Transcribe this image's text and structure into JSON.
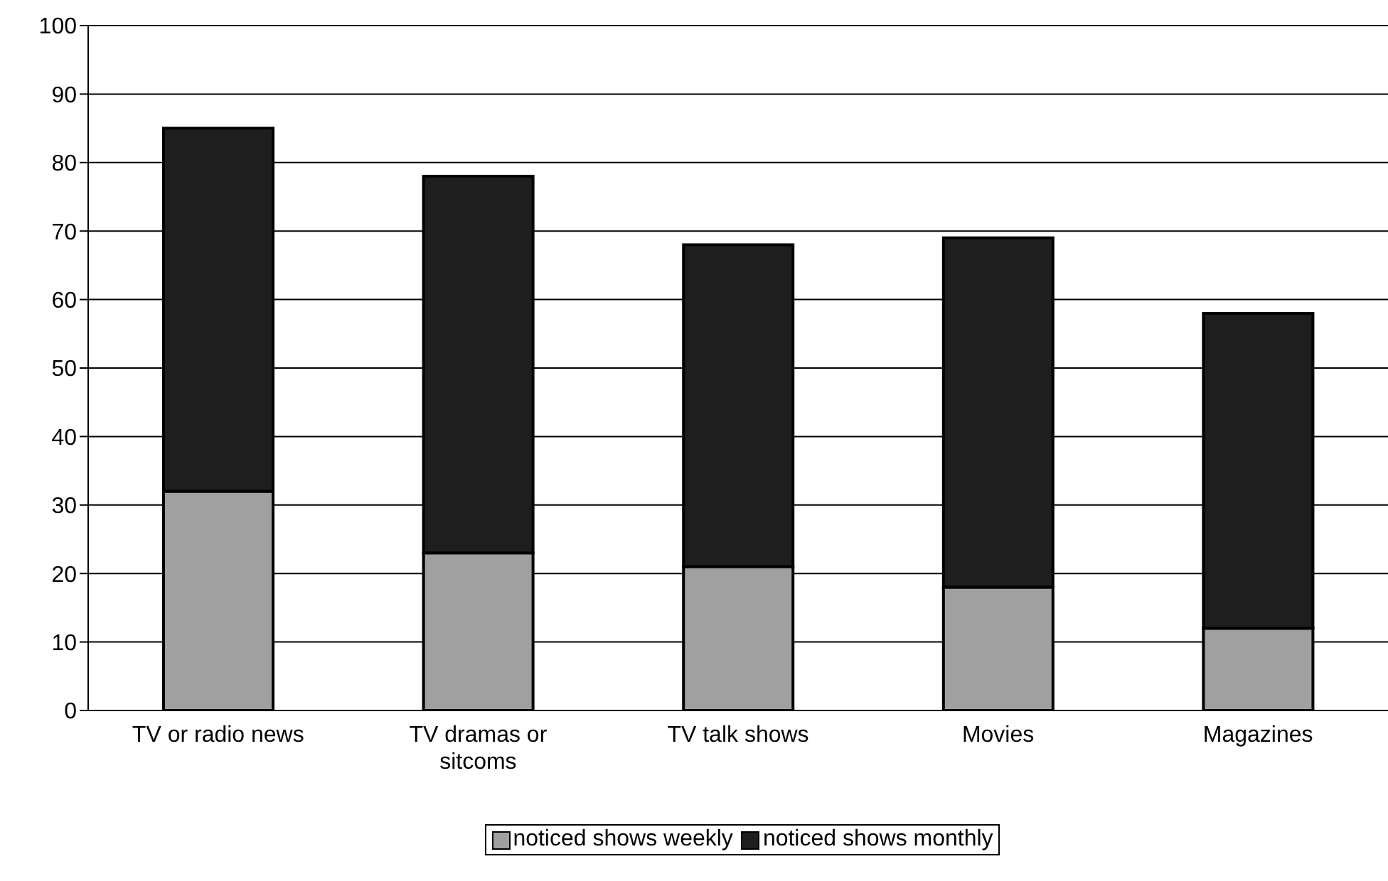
{
  "chart_data": {
    "type": "bar",
    "stacked": true,
    "categories": [
      "TV or radio news",
      "TV dramas or sitcoms",
      "TV talk shows",
      "Movies",
      "Magazines"
    ],
    "series": [
      {
        "name": "noticed shows weekly",
        "color": "#a0a0a0",
        "values": [
          32,
          23,
          21,
          18,
          12
        ]
      },
      {
        "name": "noticed shows monthly",
        "color": "#1e1e1e",
        "values": [
          53,
          55,
          47,
          51,
          46
        ]
      }
    ],
    "ylim": [
      0,
      100
    ],
    "yticks": [
      0,
      10,
      20,
      30,
      40,
      50,
      60,
      70,
      80,
      90,
      100
    ],
    "grid": "y",
    "legend": "bottom"
  }
}
